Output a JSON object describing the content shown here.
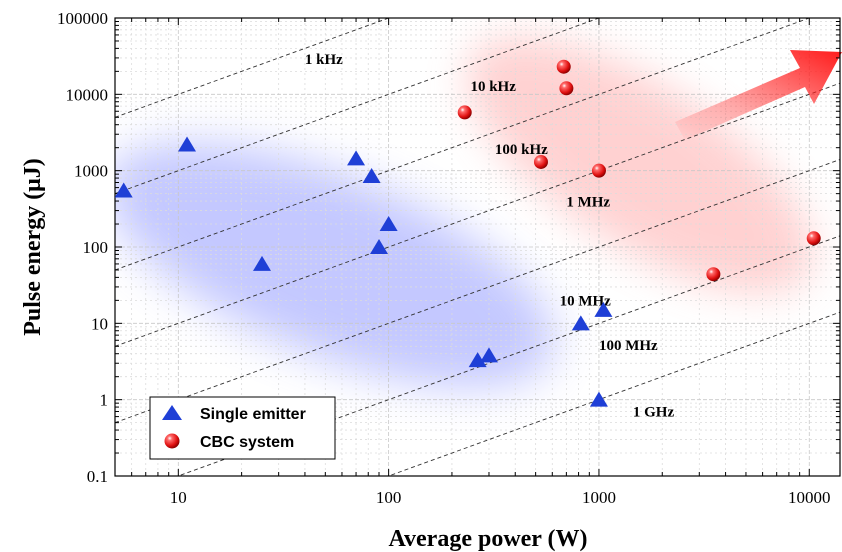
{
  "chart_data": {
    "type": "scatter",
    "x_scale": "log",
    "y_scale": "log",
    "xlim": [
      5,
      14000
    ],
    "ylim": [
      0.1,
      100000
    ],
    "xlabel": "Average power (W)",
    "ylabel": "Pulse energy (μJ)",
    "x_ticks": [
      {
        "value": 10,
        "label": "10"
      },
      {
        "value": 100,
        "label": "100"
      },
      {
        "value": 1000,
        "label": "1000"
      },
      {
        "value": 10000,
        "label": "10000"
      }
    ],
    "y_ticks": [
      {
        "value": 0.1,
        "label": "0.1"
      },
      {
        "value": 1,
        "label": "1"
      },
      {
        "value": 10,
        "label": "10"
      },
      {
        "value": 100,
        "label": "100"
      },
      {
        "value": 1000,
        "label": "1000"
      },
      {
        "value": 10000,
        "label": "10000"
      },
      {
        "value": 100000,
        "label": "100000"
      }
    ],
    "grid": true,
    "legend_position": "bottom-left",
    "series": [
      {
        "name": "Single emitter",
        "marker": "triangle",
        "color": "#1f3fd6",
        "points": [
          {
            "x": 5.5,
            "y": 550
          },
          {
            "x": 11,
            "y": 2200
          },
          {
            "x": 25,
            "y": 60
          },
          {
            "x": 70,
            "y": 1450
          },
          {
            "x": 83,
            "y": 850
          },
          {
            "x": 90,
            "y": 100
          },
          {
            "x": 100,
            "y": 200
          },
          {
            "x": 265,
            "y": 3.3
          },
          {
            "x": 300,
            "y": 3.8
          },
          {
            "x": 820,
            "y": 10
          },
          {
            "x": 1000,
            "y": 1
          },
          {
            "x": 1050,
            "y": 15
          }
        ]
      },
      {
        "name": "CBC system",
        "marker": "sphere",
        "color": "#e01010",
        "points": [
          {
            "x": 230,
            "y": 5800
          },
          {
            "x": 530,
            "y": 1300
          },
          {
            "x": 680,
            "y": 23000
          },
          {
            "x": 700,
            "y": 12000
          },
          {
            "x": 1000,
            "y": 1000
          },
          {
            "x": 3500,
            "y": 44
          },
          {
            "x": 10500,
            "y": 130
          }
        ]
      }
    ],
    "rep_rate_lines": [
      {
        "label": "1 kHz",
        "rate_hz": 1000,
        "label_at": {
          "x": 40,
          "y": 25000
        }
      },
      {
        "label": "10 kHz",
        "rate_hz": 10000,
        "label_at": {
          "x": 245,
          "y": 11000
        }
      },
      {
        "label": "100 kHz",
        "rate_hz": 100000,
        "label_at": {
          "x": 320,
          "y": 1650
        }
      },
      {
        "label": "1 MHz",
        "rate_hz": 1000000,
        "label_at": {
          "x": 700,
          "y": 340
        }
      },
      {
        "label": "10 MHz",
        "rate_hz": 10000000,
        "label_at": {
          "x": 650,
          "y": 17
        }
      },
      {
        "label": "100 MHz",
        "rate_hz": 100000000,
        "label_at": {
          "x": 1000,
          "y": 4.5
        }
      },
      {
        "label": "1 GHz",
        "rate_hz": 1000000000,
        "label_at": {
          "x": 1450,
          "y": 0.6
        }
      }
    ],
    "arrow_color": "#ff1a1a"
  }
}
